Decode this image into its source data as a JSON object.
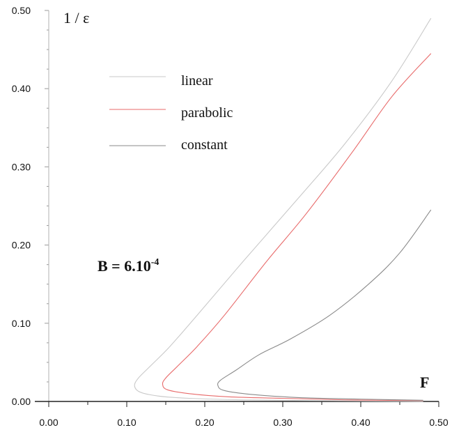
{
  "chart_data": {
    "type": "line",
    "ylabel": "1 / ε",
    "xlabel": "F",
    "xlim": [
      0.0,
      0.5
    ],
    "ylim": [
      0.0,
      0.5
    ],
    "x_ticks": [
      "0.00",
      "0.10",
      "0.20",
      "0.30",
      "0.40",
      "0.50"
    ],
    "y_ticks": [
      "0.00",
      "0.10",
      "0.20",
      "0.30",
      "0.40",
      "0.50"
    ],
    "grid": false,
    "legend_position": "upper-left",
    "annotation": {
      "base": "B = 6.10",
      "exponent": "-4"
    },
    "series": [
      {
        "name": "linear",
        "color": "#c9c9c9",
        "points": [
          [
            0.48,
            0.0
          ],
          [
            0.35,
            0.001
          ],
          [
            0.25,
            0.002
          ],
          [
            0.18,
            0.004
          ],
          [
            0.14,
            0.007
          ],
          [
            0.117,
            0.012
          ],
          [
            0.11,
            0.02
          ],
          [
            0.115,
            0.03
          ],
          [
            0.13,
            0.045
          ],
          [
            0.155,
            0.07
          ],
          [
            0.19,
            0.11
          ],
          [
            0.25,
            0.18
          ],
          [
            0.32,
            0.26
          ],
          [
            0.38,
            0.33
          ],
          [
            0.44,
            0.41
          ],
          [
            0.49,
            0.49
          ]
        ]
      },
      {
        "name": "parabolic",
        "color": "#e86a6a",
        "points": [
          [
            0.48,
            0.001
          ],
          [
            0.38,
            0.002
          ],
          [
            0.3,
            0.004
          ],
          [
            0.23,
            0.006
          ],
          [
            0.18,
            0.01
          ],
          [
            0.152,
            0.015
          ],
          [
            0.146,
            0.022
          ],
          [
            0.15,
            0.03
          ],
          [
            0.165,
            0.045
          ],
          [
            0.19,
            0.07
          ],
          [
            0.225,
            0.11
          ],
          [
            0.28,
            0.18
          ],
          [
            0.33,
            0.24
          ],
          [
            0.39,
            0.32
          ],
          [
            0.44,
            0.39
          ],
          [
            0.49,
            0.445
          ]
        ]
      },
      {
        "name": "constant",
        "color": "#8a8a8a",
        "points": [
          [
            0.48,
            0.0015
          ],
          [
            0.4,
            0.003
          ],
          [
            0.32,
            0.005
          ],
          [
            0.26,
            0.009
          ],
          [
            0.225,
            0.014
          ],
          [
            0.217,
            0.02
          ],
          [
            0.22,
            0.027
          ],
          [
            0.24,
            0.04
          ],
          [
            0.27,
            0.06
          ],
          [
            0.31,
            0.08
          ],
          [
            0.36,
            0.11
          ],
          [
            0.41,
            0.15
          ],
          [
            0.45,
            0.19
          ],
          [
            0.49,
            0.245
          ]
        ]
      }
    ]
  }
}
